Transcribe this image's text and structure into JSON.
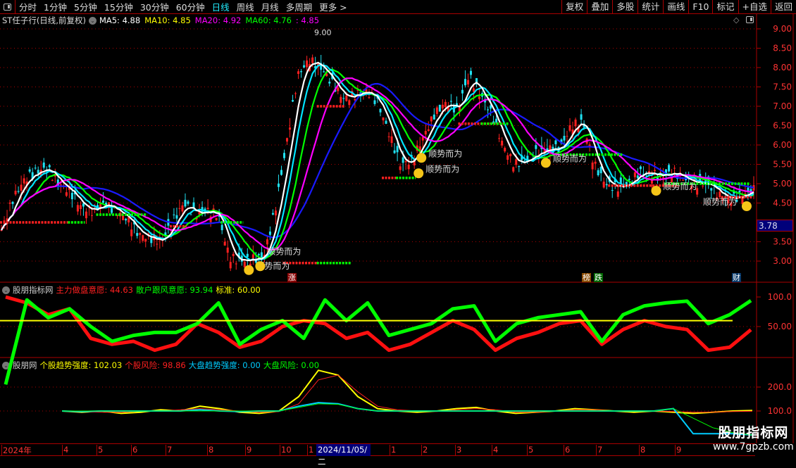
{
  "toolbar": {
    "periods": [
      "分时",
      "1分钟",
      "5分钟",
      "15分钟",
      "30分钟",
      "60分钟",
      "日线",
      "周线",
      "月线",
      "多周期",
      "更多 >"
    ],
    "active_period": "日线",
    "actions": [
      "复权",
      "叠加",
      "多股",
      "统计",
      "画线",
      "F10",
      "标记",
      "+自选",
      "返回"
    ]
  },
  "main": {
    "title": "ST任子行(日线,前复权)",
    "ma": [
      {
        "label": "MA5: 4.88",
        "color": "#ffffff"
      },
      {
        "label": "MA10: 4.85",
        "color": "#ffff00"
      },
      {
        "label": "MA20: 4.92",
        "color": "#ff00ff"
      },
      {
        "label": "MA60: 4.76",
        "color": "#00ff00"
      },
      {
        "label": ": 4.85",
        "color": "#ff00ff"
      }
    ],
    "y_ticks": [
      "9.00",
      "8.50",
      "8.00",
      "7.50",
      "7.00",
      "6.50",
      "6.00",
      "5.50",
      "5.00",
      "4.50",
      "3.50",
      "3.00"
    ],
    "y_tick_values": [
      9,
      8.5,
      8,
      7.5,
      7,
      6.5,
      6,
      5.5,
      5,
      4.5,
      3.5,
      3
    ],
    "current_price_box": "3.78",
    "high_marker": "9.00",
    "signal_text": "顺势而为",
    "tags": {
      "zhang": "涨",
      "bang": "榜",
      "die": "跌",
      "cai": "财"
    },
    "colors": {
      "up": "#ff2020",
      "down": "#20e0f0",
      "ma5": "#ffffff",
      "ma20": "#ff00ff",
      "ma_cyan": "#00e5ff",
      "ma_green": "#00ff00",
      "ma_blue": "#1a1aff"
    }
  },
  "chart_data": [
    {
      "type": "candlestick",
      "title": "ST任子行(日线,前复权)",
      "ylim": [
        2.8,
        9.3
      ],
      "close_sampled": [
        3.8,
        4.6,
        5.1,
        5.3,
        5.4,
        5.0,
        4.8,
        4.4,
        4.3,
        4.5,
        4.3,
        4.1,
        3.7,
        3.6,
        3.5,
        4.0,
        4.5,
        4.2,
        4.3,
        4.2,
        3.1,
        3.0,
        3.05,
        3.1,
        4.3,
        6.0,
        7.8,
        8.2,
        8.0,
        7.6,
        7.2,
        7.3,
        7.4,
        7.1,
        6.3,
        5.5,
        5.6,
        6.2,
        6.8,
        7.1,
        6.9,
        7.8,
        7.3,
        6.8,
        6.0,
        5.5,
        5.6,
        5.8,
        5.9,
        5.9,
        6.5,
        6.6,
        5.5,
        5.0,
        4.9,
        5.0,
        5.3,
        5.25,
        5.2,
        5.3,
        5.1,
        5.0,
        5.0,
        4.7,
        4.6,
        4.7,
        4.85
      ],
      "support_levels": [
        {
          "from": 0,
          "to": 24,
          "price": 4.0,
          "color": "#ff2020"
        },
        {
          "from": 24,
          "to": 30,
          "price": 4.0,
          "color": "#00ff00"
        },
        {
          "from": 34,
          "to": 52,
          "price": 4.2,
          "color": "#00ff00"
        },
        {
          "from": 60,
          "to": 66,
          "price": 3.9,
          "color": "#ff2020"
        },
        {
          "from": 78,
          "to": 86,
          "price": 4.0,
          "color": "#00ff00"
        },
        {
          "from": 100,
          "to": 112,
          "price": 2.95,
          "color": "#ff2020"
        },
        {
          "from": 112,
          "to": 124,
          "price": 2.95,
          "color": "#00ff00"
        },
        {
          "from": 112,
          "to": 122,
          "price": 7.0,
          "color": "#ff2020"
        },
        {
          "from": 135,
          "to": 140,
          "price": 5.15,
          "color": "#ff2020"
        },
        {
          "from": 140,
          "to": 147,
          "price": 5.15,
          "color": "#00ff00"
        },
        {
          "from": 162,
          "to": 178,
          "price": 6.55,
          "color": "#ff2020"
        },
        {
          "from": 170,
          "to": 180,
          "price": 6.55,
          "color": "#00ff00"
        },
        {
          "from": 198,
          "to": 220,
          "price": 5.75,
          "color": "#00ff00"
        },
        {
          "from": 215,
          "to": 240,
          "price": 4.95,
          "color": "#ff2020"
        },
        {
          "from": 235,
          "to": 265,
          "price": 5.0,
          "color": "#00ff00"
        },
        {
          "from": 255,
          "to": 266,
          "price": 4.65,
          "color": "#ff2020"
        }
      ],
      "signals": [
        {
          "bar": 88,
          "price": 2.95
        },
        {
          "bar": 92,
          "price": 3.05
        },
        {
          "bar": 149,
          "price": 5.85
        },
        {
          "bar": 148,
          "price": 5.45
        },
        {
          "bar": 193,
          "price": 5.72
        },
        {
          "bar": 232,
          "price": 5.0
        },
        {
          "bar": 264,
          "price": 4.6
        }
      ]
    },
    {
      "type": "line",
      "title": "股朋指标网",
      "ylim": [
        0,
        110
      ],
      "y_ticks": [
        "100.0",
        "50.00"
      ],
      "y_tick_values": [
        100,
        50
      ],
      "series": [
        {
          "name": "主力做盘意愿",
          "label": "主力做盘意愿: 44.63",
          "color": "#ff1010",
          "values": [
            100,
            90,
            70,
            80,
            30,
            20,
            25,
            10,
            20,
            55,
            40,
            15,
            25,
            50,
            60,
            55,
            30,
            40,
            10,
            20,
            40,
            60,
            45,
            10,
            30,
            40,
            55,
            60,
            20,
            45,
            60,
            50,
            45,
            10,
            15,
            44.63
          ]
        },
        {
          "name": "散户跟风意愿",
          "label": "散户跟风意愿: 93.94",
          "color": "#00ff00",
          "values": [
            0,
            95,
            65,
            80,
            50,
            25,
            35,
            40,
            40,
            55,
            90,
            20,
            45,
            60,
            30,
            95,
            60,
            90,
            35,
            45,
            55,
            80,
            85,
            25,
            55,
            65,
            70,
            75,
            25,
            70,
            85,
            90,
            93,
            55,
            70,
            93.94
          ]
        },
        {
          "name": "标准",
          "label": "标准: 60.00",
          "color": "#ffff00",
          "values": [
            60
          ]
        }
      ]
    },
    {
      "type": "line",
      "title": "股朋网",
      "ylim": [
        0,
        300
      ],
      "y_ticks": [
        "200.0",
        "100.0"
      ],
      "y_tick_values": [
        200,
        100
      ],
      "series": [
        {
          "name": "个股趋势强度",
          "label": "个股趋势强度: 102.03",
          "color": "#ffff00",
          "values": [
            100,
            95,
            100,
            90,
            95,
            105,
            100,
            120,
            110,
            95,
            90,
            100,
            160,
            270,
            250,
            160,
            110,
            100,
            95,
            100,
            110,
            115,
            100,
            90,
            95,
            100,
            110,
            105,
            100,
            95,
            100,
            95,
            90,
            95,
            100,
            102.03
          ]
        },
        {
          "name": "个股风险",
          "label": "个股风险: 98.86",
          "color": "#ff2020",
          "values": [
            100,
            98,
            95,
            95,
            100,
            100,
            105,
            110,
            105,
            100,
            95,
            98,
            130,
            230,
            250,
            180,
            120,
            105,
            100,
            98,
            105,
            110,
            105,
            95,
            95,
            100,
            105,
            105,
            100,
            100,
            100,
            98,
            95,
            95,
            98,
            98.86
          ]
        },
        {
          "name": "大盘趋势强度",
          "label": "大盘趋势强度: 0.00",
          "color": "#00ccff",
          "values": [
            100,
            98,
            100,
            100,
            100,
            100,
            100,
            105,
            100,
            98,
            100,
            100,
            120,
            135,
            130,
            110,
            100,
            100,
            100,
            100,
            100,
            100,
            100,
            100,
            100,
            100,
            100,
            100,
            100,
            100,
            100,
            110,
            5,
            5,
            5,
            0
          ]
        },
        {
          "name": "大盘风险",
          "label": "大盘风险: 0.00",
          "color": "#00ff00",
          "values": [
            100,
            100,
            100,
            100,
            100,
            100,
            100,
            100,
            100,
            100,
            100,
            100,
            115,
            130,
            128,
            110,
            100,
            100,
            100,
            100,
            100,
            100,
            100,
            100,
            100,
            100,
            100,
            100,
            100,
            100,
            100,
            110,
            70,
            30,
            10,
            0
          ]
        }
      ]
    }
  ],
  "date_axis": {
    "labels": [
      "2024年",
      "4",
      "5",
      "6",
      "7",
      "8",
      "9",
      "10",
      "1",
      "1",
      "2",
      "3",
      "4",
      "5",
      "6",
      "7",
      "8",
      "9"
    ],
    "selected": "2024/11/05/二"
  },
  "watermark": {
    "line1": "股朋指标网",
    "line2": "www.7gpzb.com"
  }
}
